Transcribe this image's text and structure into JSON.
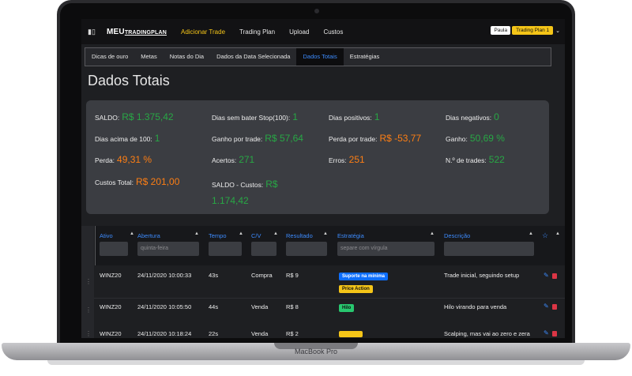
{
  "device": {
    "label": "MacBook Pro"
  },
  "navbar": {
    "brand_main": "MEU",
    "brand_sub": "TRADINGPLAN",
    "links": [
      {
        "label": "Adicionar Trade",
        "active": true
      },
      {
        "label": "Trading Plan",
        "active": false
      },
      {
        "label": "Upload",
        "active": false
      },
      {
        "label": "Custos",
        "active": false
      }
    ],
    "user": "Paula",
    "plan": "Trading Plan 1"
  },
  "tabs": [
    {
      "label": "Dicas de ouro",
      "active": false
    },
    {
      "label": "Metas",
      "active": false
    },
    {
      "label": "Notas do Dia",
      "active": false
    },
    {
      "label": "Dados da Data Selecionada",
      "active": false
    },
    {
      "label": "Dados Totais",
      "active": true
    },
    {
      "label": "Estratégias",
      "active": false
    }
  ],
  "page_title": "Dados Totais",
  "stats": {
    "saldo": {
      "label": "SALDO:",
      "value": "R$ 1.375,42"
    },
    "dias_sem_stop": {
      "label": "Dias sem bater Stop(100):",
      "value": "1"
    },
    "dias_positivos": {
      "label": "Dias positivos:",
      "value": "1"
    },
    "dias_negativos": {
      "label": "Dias negativos:",
      "value": "0"
    },
    "dias_acima": {
      "label": "Dias acima de 100:",
      "value": "1"
    },
    "ganho_trade": {
      "label": "Ganho por trade:",
      "value": "R$ 57,64"
    },
    "perda_trade": {
      "label": "Perda por trade:",
      "value": "R$ -53,77"
    },
    "ganho": {
      "label": "Ganho:",
      "value": "50,69 %"
    },
    "perda": {
      "label": "Perda:",
      "value": "49,31 %"
    },
    "acertos": {
      "label": "Acertos:",
      "value": "271"
    },
    "erros": {
      "label": "Erros:",
      "value": "251"
    },
    "trades": {
      "label": "N.º de trades:",
      "value": "522"
    },
    "custos": {
      "label": "Custos Total:",
      "value": "R$ 201,00"
    },
    "saldo_custos": {
      "label": "SALDO - Custos:",
      "value_a": "R$",
      "value_b": "1.174,42"
    }
  },
  "table": {
    "columns": [
      "Ativo",
      "Abertura",
      "Tempo",
      "C/V",
      "Resultado",
      "Estratégia",
      "Descrição"
    ],
    "filters": {
      "abertura_placeholder": "quinta-feira",
      "estrategia_placeholder": "separe com vírgula"
    },
    "rows": [
      {
        "ativo": "WINZ20",
        "abertura": "24/11/2020 10:00:33",
        "tempo": "43s",
        "cv": "Compra",
        "resultado": "R$ 9",
        "estrategias": [
          "Suporte na mínima",
          "Price Action"
        ],
        "descricao": "Trade inicial, seguindo setup"
      },
      {
        "ativo": "WINZ20",
        "abertura": "24/11/2020 10:05:50",
        "tempo": "44s",
        "cv": "Venda",
        "resultado": "R$ 8",
        "estrategias": [
          "Hilo"
        ],
        "descricao": "Hilo virando para venda"
      },
      {
        "ativo": "WINZ20",
        "abertura": "24/11/2020 10:18:24",
        "tempo": "22s",
        "cv": "Venda",
        "resultado": "R$ 2",
        "estrategias": [
          ""
        ],
        "descricao": "Scalping, mas vai ao zero e zera"
      }
    ]
  },
  "colors": {
    "accent": "#3d8bfd",
    "positive": "#28a745",
    "negative": "#fd7e14",
    "highlight": "#f5c518"
  }
}
